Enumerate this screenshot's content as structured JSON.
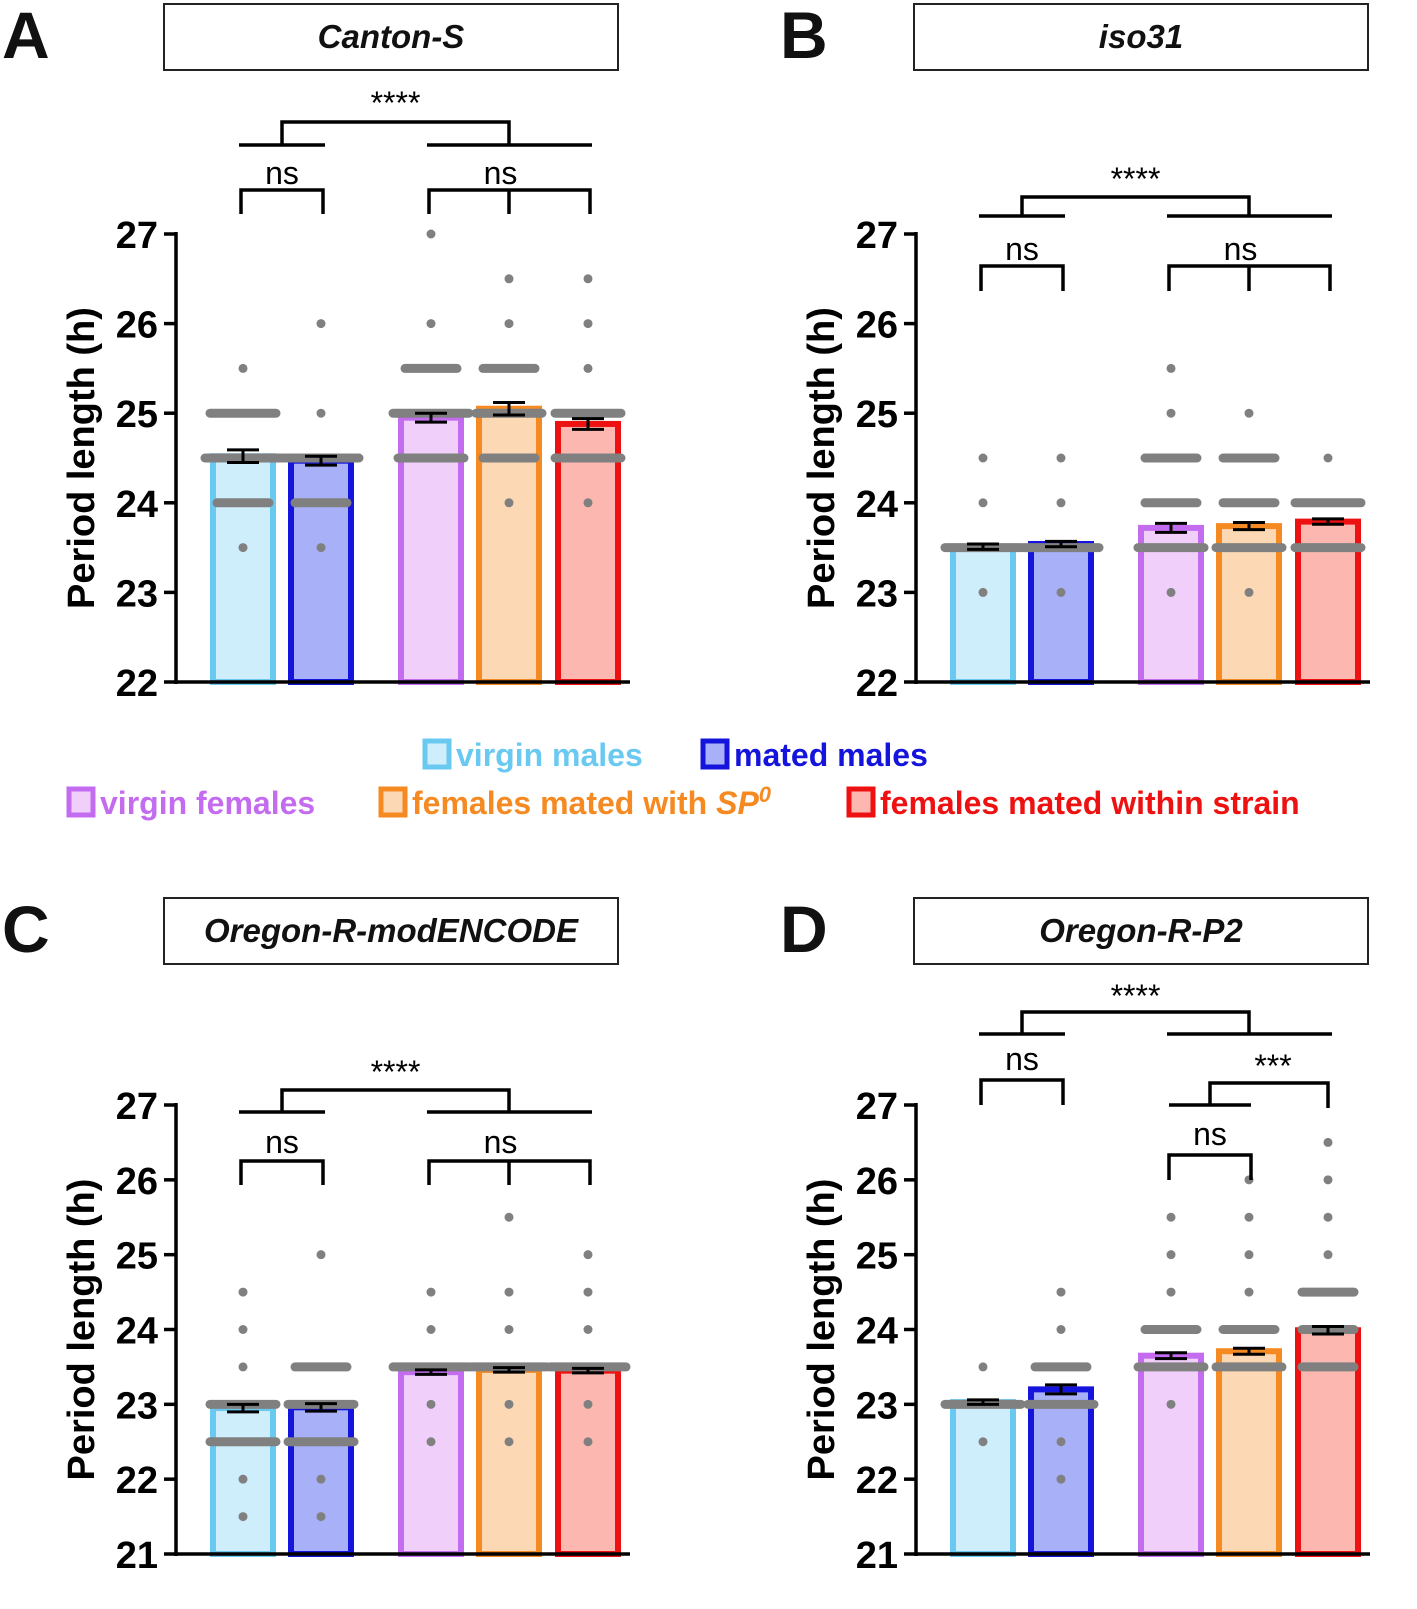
{
  "legend": {
    "items": [
      {
        "label": "virgin males",
        "color": "#6ac9f0",
        "fill": "#cfeefb"
      },
      {
        "label": "mated males",
        "color": "#1414dc",
        "fill": "#a8b0f8"
      },
      {
        "label": "virgin females",
        "color": "#c46cf0",
        "fill": "#f0d0fb"
      },
      {
        "label": "females mated with ",
        "label_italic": "SP",
        "label_sup": "0",
        "color": "#f58a23",
        "fill": "#fcd9b4"
      },
      {
        "label": "females mated within strain",
        "color": "#ee1111",
        "fill": "#fbb7b0"
      }
    ]
  },
  "chart_data": [
    {
      "type": "bar",
      "panel": "A",
      "title": "Canton-S",
      "ylabel": "Period length (h)",
      "ylim": [
        22,
        27
      ],
      "yticks": [
        22,
        23,
        24,
        25,
        26,
        27
      ],
      "categories": [
        "virgin males",
        "mated males",
        "virgin females",
        "females mated with SP0",
        "females mated within strain"
      ],
      "values": [
        24.52,
        24.47,
        24.95,
        25.05,
        24.88
      ],
      "sem": [
        0.07,
        0.05,
        0.05,
        0.07,
        0.06
      ],
      "points": [
        [
          23.5,
          24,
          24,
          24.5,
          24.5,
          24.5,
          24.5,
          25,
          25,
          25,
          25.5
        ],
        [
          23.5,
          24,
          24,
          24.5,
          24.5,
          24.5,
          24.5,
          25,
          26
        ],
        [
          24.5,
          24.5,
          24.5,
          25,
          25,
          25,
          25,
          25.5,
          25.5,
          26,
          27
        ],
        [
          24,
          24.5,
          24.5,
          25,
          25,
          25,
          25.5,
          25.5,
          26,
          26.5
        ],
        [
          24,
          24.5,
          24.5,
          24.5,
          25,
          25,
          25,
          25.5,
          26,
          26.5
        ]
      ],
      "comparisons": [
        {
          "label": "ns",
          "groups": [
            0,
            1
          ]
        },
        {
          "label": "ns",
          "groups": [
            2,
            3,
            4
          ]
        },
        {
          "label": "****",
          "groups": [
            "males",
            "females"
          ]
        }
      ]
    },
    {
      "type": "bar",
      "panel": "B",
      "title": "iso31",
      "ylabel": "Period length (h)",
      "ylim": [
        22,
        27
      ],
      "yticks": [
        22,
        23,
        24,
        25,
        26,
        27
      ],
      "categories": [
        "virgin males",
        "mated males",
        "virgin females",
        "females mated with SP0",
        "females mated within strain"
      ],
      "values": [
        23.51,
        23.54,
        23.72,
        23.74,
        23.79
      ],
      "sem": [
        0.03,
        0.03,
        0.05,
        0.04,
        0.03
      ],
      "points": [
        [
          23,
          23.5,
          23.5,
          23.5,
          23.5,
          24,
          24.5
        ],
        [
          23,
          23.5,
          23.5,
          23.5,
          23.5,
          24,
          24.5
        ],
        [
          23,
          23.5,
          23.5,
          23.5,
          24,
          24,
          24.5,
          24.5,
          25,
          25.5
        ],
        [
          23,
          23.5,
          23.5,
          23.5,
          24,
          24,
          24.5,
          24.5,
          25
        ],
        [
          23.5,
          23.5,
          23.5,
          24,
          24,
          24,
          24.5
        ]
      ],
      "comparisons": [
        {
          "label": "ns",
          "groups": [
            0,
            1
          ]
        },
        {
          "label": "ns",
          "groups": [
            2,
            3,
            4
          ]
        },
        {
          "label": "****",
          "groups": [
            "males",
            "females"
          ]
        }
      ]
    },
    {
      "type": "bar",
      "panel": "C",
      "title": "Oregon-R-modENCODE",
      "ylabel": "Period length (h)",
      "ylim": [
        21,
        27
      ],
      "yticks": [
        21,
        22,
        23,
        24,
        25,
        26,
        27
      ],
      "categories": [
        "virgin males",
        "mated males",
        "virgin females",
        "females mated with SP0",
        "females mated within strain"
      ],
      "values": [
        22.95,
        22.96,
        23.43,
        23.46,
        23.45
      ],
      "sem": [
        0.05,
        0.05,
        0.03,
        0.03,
        0.03
      ],
      "points": [
        [
          21.5,
          22,
          22.5,
          22.5,
          22.5,
          23,
          23,
          23,
          23.5,
          24,
          24.5
        ],
        [
          21.5,
          22,
          22.5,
          22.5,
          22.5,
          23,
          23,
          23,
          23.5,
          23.5,
          25
        ],
        [
          22.5,
          23,
          23.5,
          23.5,
          23.5,
          23.5,
          24,
          24.5
        ],
        [
          22.5,
          23,
          23.5,
          23.5,
          23.5,
          23.5,
          24,
          24.5,
          25.5
        ],
        [
          22.5,
          23,
          23.5,
          23.5,
          23.5,
          23.5,
          24,
          24.5,
          25
        ]
      ],
      "comparisons": [
        {
          "label": "ns",
          "groups": [
            0,
            1
          ]
        },
        {
          "label": "ns",
          "groups": [
            2,
            3,
            4
          ]
        },
        {
          "label": "****",
          "groups": [
            "males",
            "females"
          ]
        }
      ]
    },
    {
      "type": "bar",
      "panel": "D",
      "title": "Oregon-R-P2",
      "ylabel": "Period length (h)",
      "ylim": [
        21,
        27
      ],
      "yticks": [
        21,
        22,
        23,
        24,
        25,
        26,
        27
      ],
      "categories": [
        "virgin males",
        "mated males",
        "virgin females",
        "females mated with SP0",
        "females mated within strain"
      ],
      "values": [
        23.03,
        23.2,
        23.65,
        23.71,
        23.99
      ],
      "sem": [
        0.03,
        0.06,
        0.04,
        0.04,
        0.05
      ],
      "points": [
        [
          22.5,
          23,
          23,
          23,
          23,
          23.5
        ],
        [
          22,
          22.5,
          23,
          23,
          23,
          23.5,
          23.5,
          24,
          24.5
        ],
        [
          23,
          23.5,
          23.5,
          23.5,
          24,
          24,
          24.5,
          25,
          25.5
        ],
        [
          23.5,
          23.5,
          23.5,
          24,
          24,
          24.5,
          25,
          25.5,
          26
        ],
        [
          23.5,
          23.5,
          24,
          24,
          24.5,
          24.5,
          25,
          25.5,
          26,
          26.5
        ]
      ],
      "comparisons": [
        {
          "label": "ns",
          "groups": [
            0,
            1
          ]
        },
        {
          "label": "ns",
          "groups": [
            2,
            3
          ]
        },
        {
          "label": "***",
          "groups": [
            "2-3",
            4
          ]
        },
        {
          "label": "****",
          "groups": [
            "males",
            "females"
          ]
        }
      ]
    }
  ]
}
